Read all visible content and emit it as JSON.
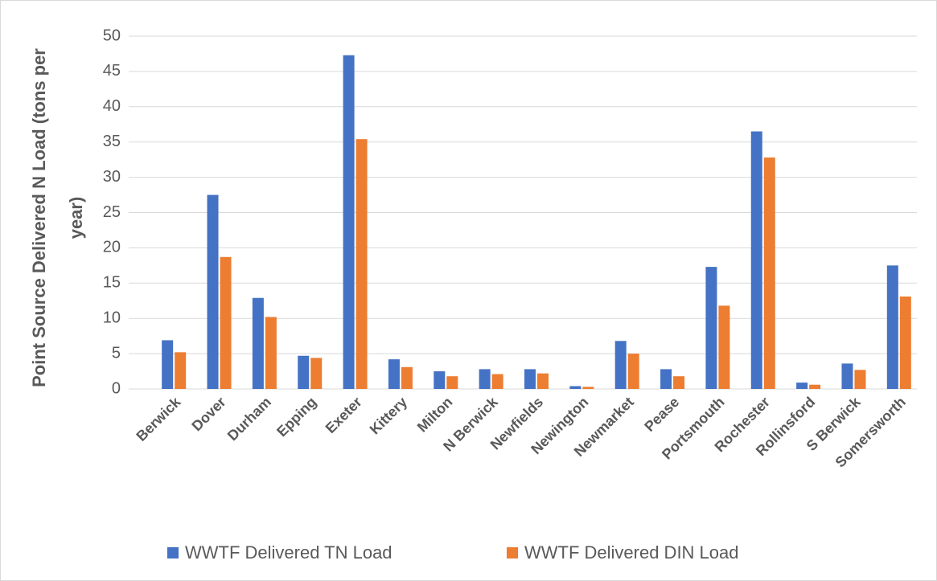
{
  "chart_data": {
    "type": "bar",
    "y_label": "Point Source Delivered N Load (tons per year)",
    "categories": [
      "Berwick",
      "Dover",
      "Durham",
      "Epping",
      "Exeter",
      "Kittery",
      "Milton",
      "N Berwick",
      "Newfields",
      "Newington",
      "Newmarket",
      "Pease",
      "Portsmouth",
      "Rochester",
      "Rollinsford",
      "S Berwick",
      "Somersworth"
    ],
    "series": [
      {
        "name": "WWTF Delivered TN Load",
        "color": "#4472c4",
        "values": [
          6.9,
          27.5,
          12.9,
          4.7,
          47.3,
          4.2,
          2.5,
          2.8,
          2.8,
          0.4,
          6.8,
          2.8,
          17.3,
          36.5,
          0.9,
          3.6,
          17.5
        ]
      },
      {
        "name": "WWTF Delivered DIN Load",
        "color": "#ed7d31",
        "values": [
          5.2,
          18.7,
          10.2,
          4.4,
          35.4,
          3.1,
          1.8,
          2.1,
          2.2,
          0.3,
          5.0,
          1.8,
          11.8,
          32.8,
          0.6,
          2.7,
          13.1
        ]
      }
    ],
    "ylim": [
      0,
      50
    ],
    "yticks": [
      0,
      5,
      10,
      15,
      20,
      25,
      30,
      35,
      40,
      45,
      50
    ],
    "grid": true,
    "legend": "bottom"
  }
}
